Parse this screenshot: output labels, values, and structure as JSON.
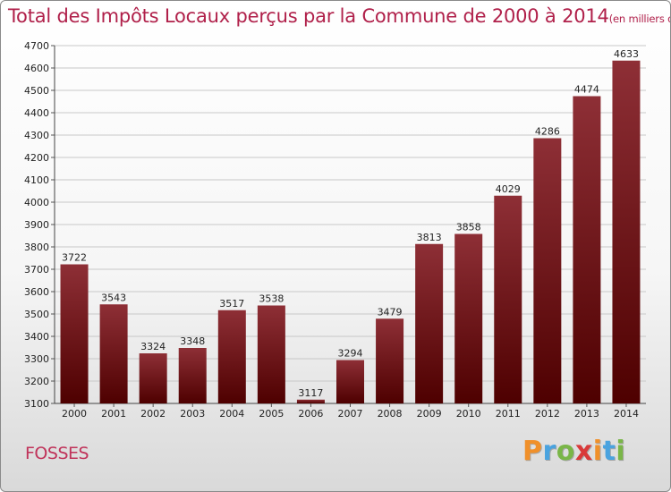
{
  "title": {
    "main": "Total des Impôts Locaux perçus par la Commune de 2000 à 2014",
    "subtitle": "(en milliers d'€)"
  },
  "commune": "FOSSES",
  "brand": {
    "letters": [
      "P",
      "r",
      "o",
      "x",
      "i",
      "t",
      "i"
    ],
    "colors": [
      "#f0902a",
      "#4aa3df",
      "#7ab648",
      "#d93a3a",
      "#f0902a",
      "#4aa3df",
      "#7ab648"
    ]
  },
  "colors": {
    "bar_top": "#8e2f36",
    "bar_bottom": "#4e0000",
    "title": "#b0204a",
    "grid": "#c8c8c8"
  },
  "chart_data": {
    "type": "bar",
    "title": "Total des Impôts Locaux perçus par la Commune de 2000 à 2014",
    "xlabel": "",
    "ylabel": "en milliers d'€",
    "categories": [
      "2000",
      "2001",
      "2002",
      "2003",
      "2004",
      "2005",
      "2006",
      "2007",
      "2008",
      "2009",
      "2010",
      "2011",
      "2012",
      "2013",
      "2014"
    ],
    "values": [
      3722,
      3543,
      3324,
      3348,
      3517,
      3538,
      3117,
      3294,
      3479,
      3813,
      3858,
      4029,
      4286,
      4474,
      4633
    ],
    "ylim": [
      3100,
      4700
    ],
    "yticks": [
      3100,
      3200,
      3300,
      3400,
      3500,
      3600,
      3700,
      3800,
      3900,
      4000,
      4100,
      4200,
      4300,
      4400,
      4500,
      4600,
      4700
    ],
    "grid": true
  }
}
